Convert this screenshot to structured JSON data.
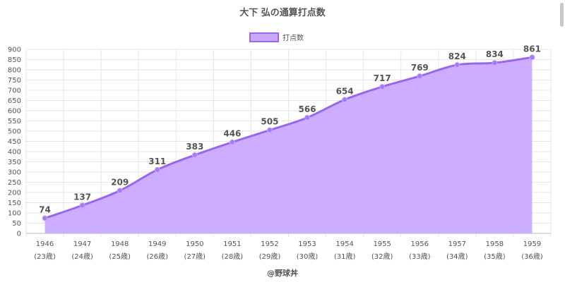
{
  "chart_data": {
    "type": "area",
    "title": "大下 弘の通算打点数",
    "legend": {
      "label": "打点数",
      "placement": "top-center"
    },
    "categories": [
      "1946",
      "1947",
      "1948",
      "1949",
      "1950",
      "1951",
      "1952",
      "1953",
      "1954",
      "1955",
      "1956",
      "1957",
      "1958",
      "1959"
    ],
    "sub_labels": [
      "(23歳)",
      "(24歳)",
      "(25歳)",
      "(26歳)",
      "(27歳)",
      "(28歳)",
      "(29歳)",
      "(30歳)",
      "(31歳)",
      "(32歳)",
      "(33歳)",
      "(34歳)",
      "(35歳)",
      "(36歳)"
    ],
    "values": [
      74,
      137,
      209,
      311,
      383,
      446,
      505,
      566,
      654,
      717,
      769,
      824,
      834,
      861
    ],
    "ylim": [
      0,
      900
    ],
    "y_step": 50,
    "grid": true,
    "colors": {
      "line": "#9966ee",
      "fill": "#c9a9ff",
      "point": "#a47cf2",
      "grid": "#e6e6e6",
      "text": "#555555"
    }
  },
  "footer": "@野球丼"
}
